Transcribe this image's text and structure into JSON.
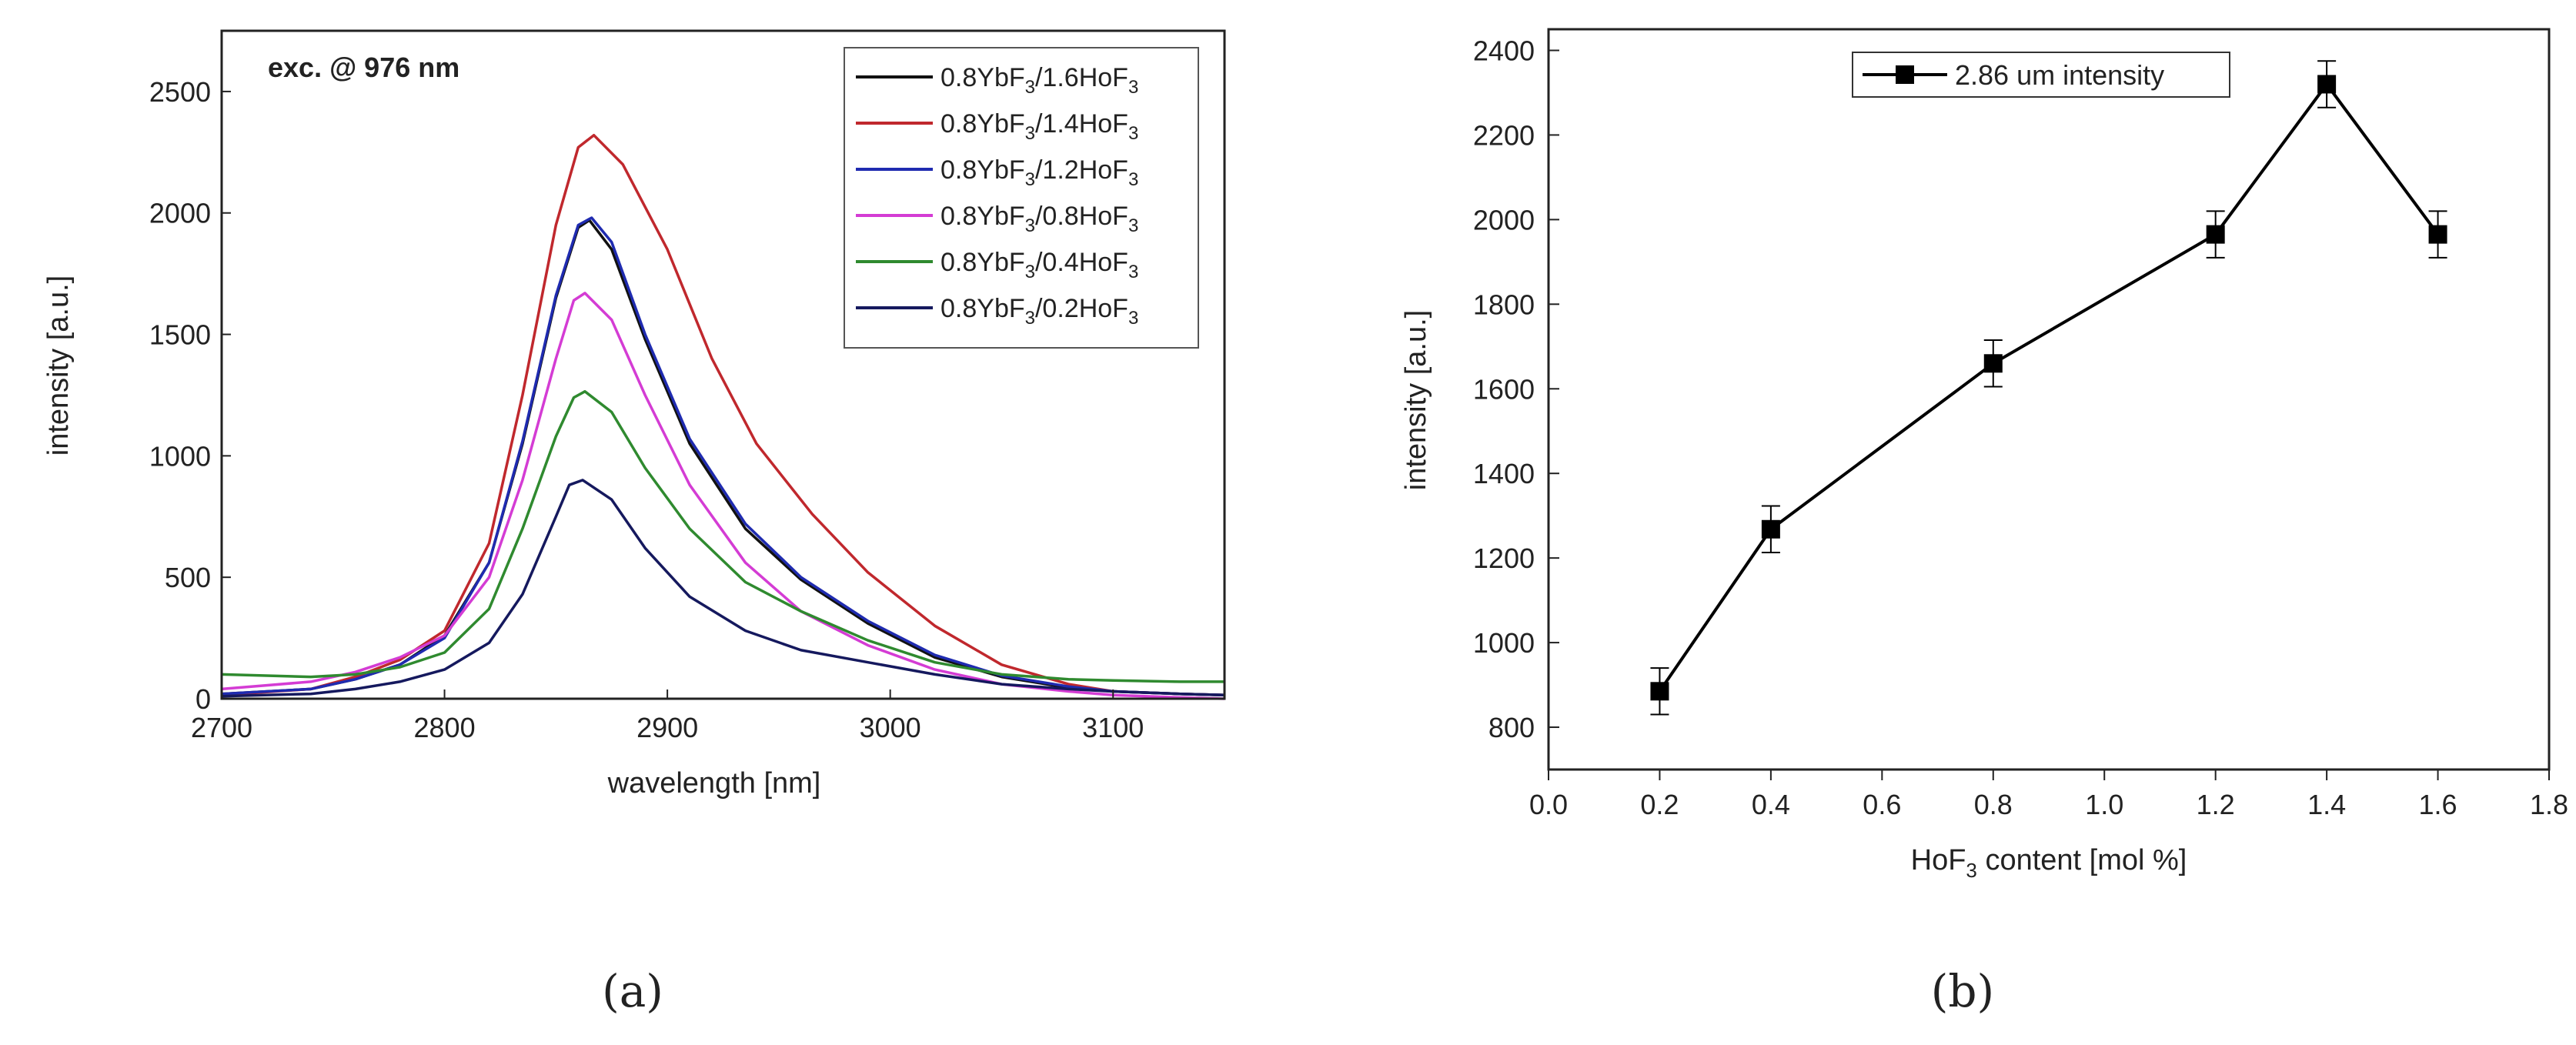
{
  "figure": {
    "panel_a_label": "(a)",
    "panel_b_label": "(b)"
  },
  "chart_data": [
    {
      "type": "line",
      "panel": "a",
      "annotation": "exc. @ 976 nm",
      "xlabel": "wavelength [nm]",
      "ylabel": "intensity [a.u.]",
      "xlim": [
        2700,
        3150
      ],
      "ylim": [
        0,
        2750
      ],
      "xticks": [
        2700,
        2800,
        2900,
        3000,
        3100
      ],
      "yticks": [
        0,
        500,
        1000,
        1500,
        2000,
        2500
      ],
      "legend_position": "top-right",
      "series": [
        {
          "name": "0.8YbF3/1.6HoF3",
          "legend_base": "0.8YbF",
          "legend_mid": "/1.6HoF",
          "legend_sub": "3",
          "color": "#111111",
          "x": [
            2700,
            2740,
            2760,
            2780,
            2800,
            2820,
            2835,
            2850,
            2860,
            2865,
            2875,
            2890,
            2910,
            2935,
            2960,
            2990,
            3020,
            3050,
            3080,
            3100,
            3130,
            3150
          ],
          "y": [
            20,
            40,
            80,
            140,
            260,
            560,
            1050,
            1650,
            1940,
            1970,
            1850,
            1480,
            1050,
            700,
            490,
            310,
            170,
            90,
            45,
            30,
            20,
            15
          ]
        },
        {
          "name": "0.8YbF3/1.4HoF3",
          "legend_base": "0.8YbF",
          "legend_mid": "/1.4HoF",
          "legend_sub": "3",
          "color": "#c0282d",
          "x": [
            2700,
            2740,
            2760,
            2780,
            2800,
            2820,
            2835,
            2850,
            2860,
            2867,
            2880,
            2900,
            2920,
            2940,
            2965,
            2990,
            3020,
            3050,
            3080,
            3100,
            3130,
            3150
          ],
          "y": [
            15,
            40,
            90,
            160,
            280,
            640,
            1250,
            1950,
            2270,
            2320,
            2200,
            1850,
            1400,
            1050,
            760,
            520,
            300,
            140,
            60,
            30,
            20,
            15
          ]
        },
        {
          "name": "0.8YbF3/1.2HoF3",
          "legend_base": "0.8YbF",
          "legend_mid": "/1.2HoF",
          "legend_sub": "3",
          "color": "#1f2bb0",
          "x": [
            2700,
            2740,
            2760,
            2780,
            2800,
            2820,
            2835,
            2850,
            2860,
            2866,
            2875,
            2890,
            2910,
            2935,
            2960,
            2990,
            3020,
            3050,
            3080,
            3100,
            3130,
            3150
          ],
          "y": [
            20,
            40,
            80,
            140,
            250,
            560,
            1060,
            1660,
            1950,
            1980,
            1880,
            1500,
            1070,
            720,
            500,
            320,
            180,
            95,
            50,
            30,
            20,
            15
          ]
        },
        {
          "name": "0.8YbF3/0.8HoF3",
          "legend_base": "0.8YbF",
          "legend_mid": "/0.8HoF",
          "legend_sub": "3",
          "color": "#d43cd4",
          "x": [
            2700,
            2740,
            2760,
            2780,
            2800,
            2820,
            2835,
            2850,
            2858,
            2863,
            2875,
            2890,
            2910,
            2935,
            2960,
            2990,
            3020,
            3050,
            3080,
            3100,
            3130,
            3150
          ],
          "y": [
            40,
            70,
            110,
            170,
            260,
            500,
            900,
            1400,
            1640,
            1670,
            1560,
            1250,
            880,
            560,
            360,
            220,
            120,
            60,
            30,
            15,
            5,
            0
          ]
        },
        {
          "name": "0.8YbF3/0.4HoF3",
          "legend_base": "0.8YbF",
          "legend_mid": "/0.4HoF",
          "legend_sub": "3",
          "color": "#2f8a2f",
          "x": [
            2700,
            2740,
            2760,
            2780,
            2800,
            2820,
            2835,
            2850,
            2858,
            2863,
            2875,
            2890,
            2910,
            2935,
            2960,
            2990,
            3020,
            3050,
            3080,
            3100,
            3130,
            3150
          ],
          "y": [
            100,
            90,
            100,
            130,
            190,
            370,
            700,
            1080,
            1240,
            1265,
            1180,
            950,
            700,
            480,
            360,
            240,
            150,
            100,
            80,
            75,
            70,
            70
          ]
        },
        {
          "name": "0.8YbF3/0.2HoF3",
          "legend_base": "0.8YbF",
          "legend_mid": "/0.2HoF",
          "legend_sub": "3",
          "color": "#15195e",
          "x": [
            2700,
            2740,
            2760,
            2780,
            2800,
            2820,
            2835,
            2850,
            2856,
            2862,
            2875,
            2890,
            2910,
            2935,
            2960,
            2990,
            3020,
            3050,
            3080,
            3100,
            3130,
            3150
          ],
          "y": [
            10,
            20,
            40,
            70,
            120,
            230,
            430,
            750,
            880,
            900,
            820,
            620,
            420,
            280,
            200,
            150,
            100,
            60,
            40,
            30,
            20,
            15
          ]
        }
      ]
    },
    {
      "type": "line",
      "panel": "b",
      "xlabel_base": "HoF",
      "xlabel_sub": "3",
      "xlabel_rest": " content [mol %]",
      "ylabel": "intensity [a.u.]",
      "xlim": [
        0.0,
        1.8
      ],
      "ylim": [
        700,
        2450
      ],
      "xticks": [
        "0.0",
        "0.2",
        "0.4",
        "0.6",
        "0.8",
        "1.0",
        "1.2",
        "1.4",
        "1.6",
        "1.8"
      ],
      "yticks": [
        "800",
        "1000",
        "1200",
        "1400",
        "1600",
        "1800",
        "2000",
        "2200",
        "2400"
      ],
      "legend_position": "top-center",
      "series": [
        {
          "name": "2.86 um intensity",
          "color": "#000000",
          "x": [
            0.2,
            0.4,
            0.8,
            1.2,
            1.4,
            1.6
          ],
          "y": [
            885,
            1268,
            1660,
            1965,
            2320,
            1965
          ],
          "yerr": [
            55,
            55,
            55,
            55,
            55,
            55
          ]
        }
      ]
    }
  ]
}
